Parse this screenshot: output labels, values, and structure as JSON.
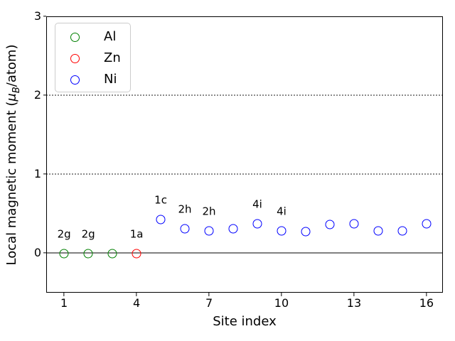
{
  "chart_data": {
    "type": "scatter",
    "title": "",
    "xlabel": "Site index",
    "ylabel": "Local magnetic moment (μB/atom)",
    "ylabel_parts": {
      "prefix": "Local magnetic moment (",
      "mu": "μ",
      "sub": "B",
      "suffix": "/atom)"
    },
    "xlim": [
      0.26,
      16.68
    ],
    "ylim": [
      -0.5045,
      3.0
    ],
    "xticks": [
      1,
      4,
      7,
      10,
      13,
      16
    ],
    "yticks": [
      0,
      1,
      2,
      3
    ],
    "grid_dotted_y": [
      1,
      2
    ],
    "zero_line_y": 0,
    "grid_color": "#8c8c8c",
    "zero_line_color": "#808080",
    "legend": {
      "position": "upper left",
      "items": [
        {
          "label": "Al",
          "color": "#008000"
        },
        {
          "label": "Zn",
          "color": "#ff0000"
        },
        {
          "label": "Ni",
          "color": "#0000ff"
        }
      ]
    },
    "series": [
      {
        "name": "Al",
        "color": "#008000",
        "marker": "open-circle",
        "points": [
          {
            "x": 1,
            "y": -0.01
          },
          {
            "x": 2,
            "y": -0.01
          },
          {
            "x": 3,
            "y": -0.01
          }
        ]
      },
      {
        "name": "Zn",
        "color": "#ff0000",
        "marker": "open-circle",
        "points": [
          {
            "x": 4,
            "y": -0.01
          }
        ]
      },
      {
        "name": "Ni",
        "color": "#0000ff",
        "marker": "open-circle",
        "points": [
          {
            "x": 5,
            "y": 0.42
          },
          {
            "x": 6,
            "y": 0.31
          },
          {
            "x": 7,
            "y": 0.28
          },
          {
            "x": 8,
            "y": 0.31
          },
          {
            "x": 9,
            "y": 0.37
          },
          {
            "x": 10,
            "y": 0.28
          },
          {
            "x": 11,
            "y": 0.27
          },
          {
            "x": 12,
            "y": 0.36
          },
          {
            "x": 13,
            "y": 0.37
          },
          {
            "x": 14,
            "y": 0.28
          },
          {
            "x": 15,
            "y": 0.28
          },
          {
            "x": 16,
            "y": 0.37
          }
        ]
      }
    ],
    "annotations": [
      {
        "x": 1,
        "y": -0.01,
        "text": "2g"
      },
      {
        "x": 2,
        "y": -0.01,
        "text": "2g"
      },
      {
        "x": 4,
        "y": -0.01,
        "text": "1a"
      },
      {
        "x": 5,
        "y": 0.42,
        "text": "1c"
      },
      {
        "x": 6,
        "y": 0.31,
        "text": "2h"
      },
      {
        "x": 7,
        "y": 0.28,
        "text": "2h"
      },
      {
        "x": 9,
        "y": 0.37,
        "text": "4i"
      },
      {
        "x": 10,
        "y": 0.28,
        "text": "4i"
      }
    ]
  }
}
